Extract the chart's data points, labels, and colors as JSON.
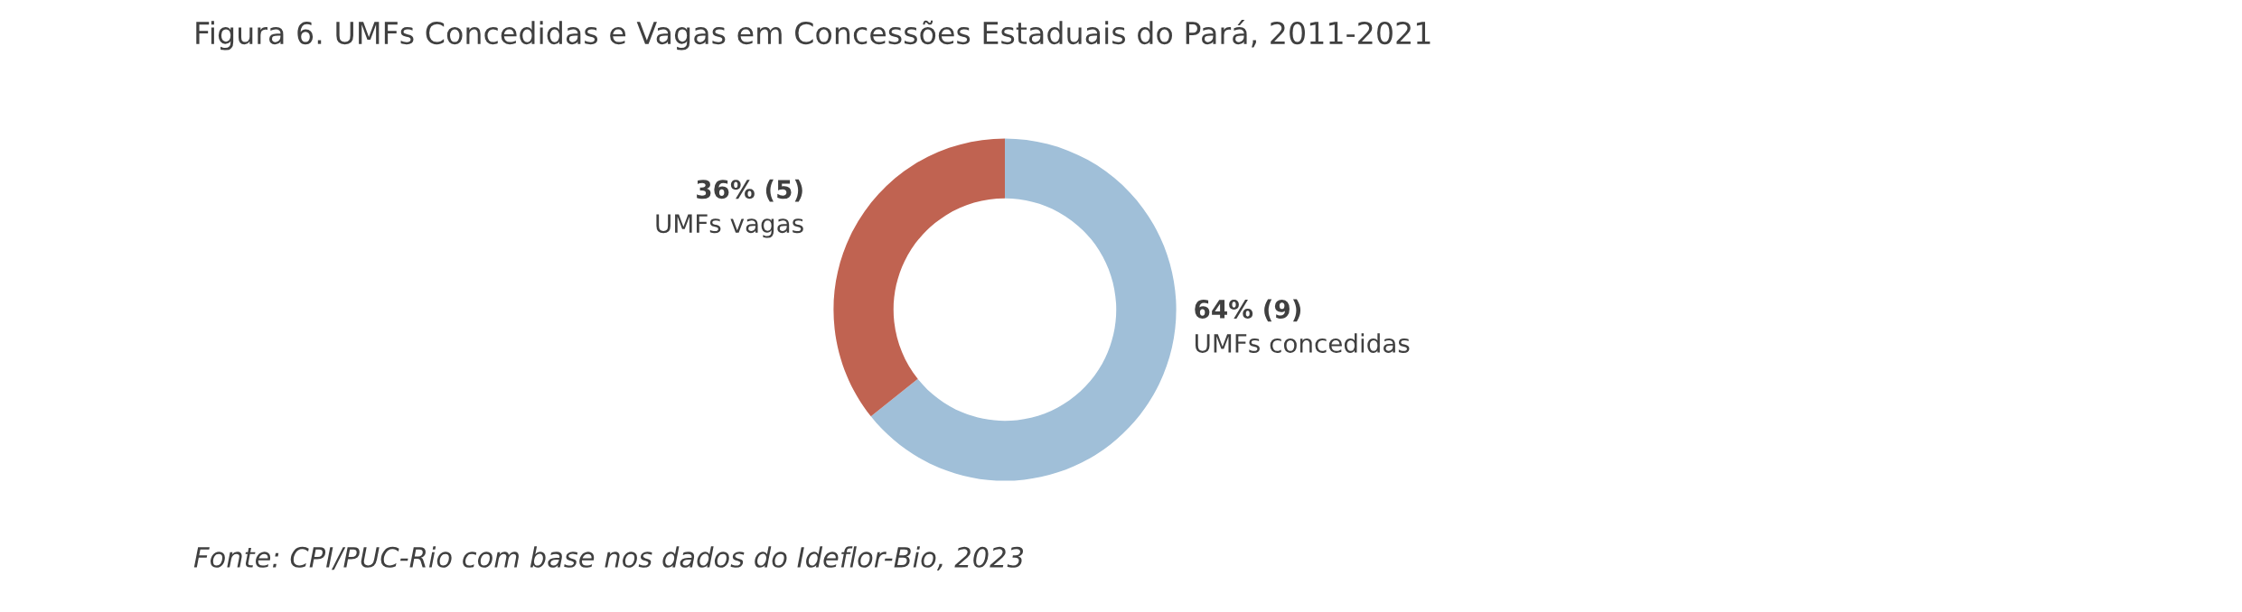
{
  "chart_data": {
    "type": "donut",
    "title": "Figura 6. UMFs Concedidas e Vagas em Concessões Estaduais do Pará, 2011-2021",
    "categories": [
      "UMFs concedidas",
      "UMFs vagas"
    ],
    "values": [
      9,
      5
    ],
    "value_labels": [
      "64% (9)",
      "36% (5)"
    ],
    "colors": [
      "#a0bfd8",
      "#c06351"
    ],
    "legend": false,
    "annotations": [
      "Fonte: CPI/PUC-Rio com base nos dados do Ideflor-Bio, 2023"
    ]
  }
}
